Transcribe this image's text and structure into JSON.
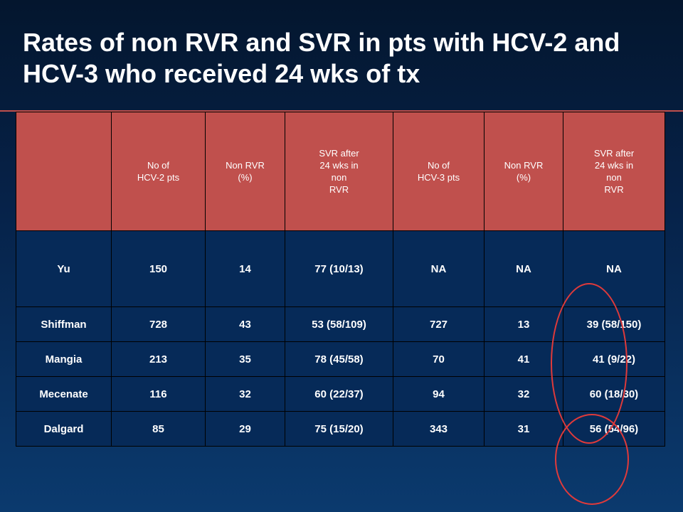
{
  "title": "Rates of non RVR and SVR in pts with HCV-2 and HCV-3 who received 24 wks of tx",
  "table": {
    "headers": [
      "",
      "No of\nHCV-2 pts",
      "Non RVR\n(%)",
      "SVR after\n24 wks in\nnon\nRVR",
      "No of\nHCV-3 pts",
      "Non RVR\n(%)",
      "SVR after\n24 wks in\nnon\nRVR"
    ],
    "rows": [
      [
        "Yu",
        "150",
        "14",
        "77 (10/13)",
        "NA",
        "NA",
        "NA"
      ],
      [
        "Shiffman",
        "728",
        "43",
        "53 (58/109)",
        "727",
        "13",
        "39 (58/150)"
      ],
      [
        "Mangia",
        "213",
        "35",
        "78 (45/58)",
        "70",
        "41",
        "41 (9/22)"
      ],
      [
        "Mecenate",
        "116",
        "32",
        "60 (22/37)",
        "94",
        "32",
        "60 (18/30)"
      ],
      [
        "Dalgard",
        "85",
        "29",
        "75 (15/20)",
        "343",
        "31",
        "56 (54/96)"
      ]
    ]
  },
  "colors": {
    "header_fill": "#c0504d",
    "body_fill": "#062a58",
    "annotation_circle": "#e03a3a"
  }
}
